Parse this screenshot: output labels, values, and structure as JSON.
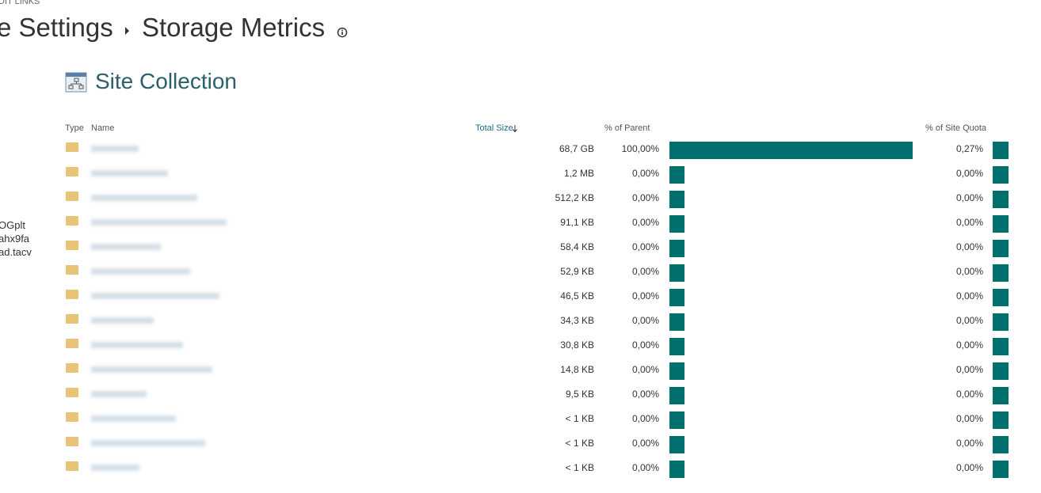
{
  "top_link": "DIT LINKS",
  "breadcrumb": {
    "parent": "e Settings",
    "current": "Storage Metrics"
  },
  "sidebar": [
    "OGplt",
    "ahx9fa",
    "ad.tacv"
  ],
  "section_title": "Site Collection",
  "table": {
    "headers": {
      "type": "Type",
      "name": "Name",
      "total_size": "Total Size",
      "percent_of_parent": "% of Parent",
      "percent_of_site_quota": "% of Site Quota"
    },
    "rows": [
      {
        "size": "68,7 GB",
        "parent": {
          "value": 100,
          "label": "100,00%"
        },
        "quota": {
          "value": 0.27,
          "label": "0,27%"
        }
      },
      {
        "size": "1,2 MB",
        "parent": {
          "value": 0,
          "label": "0,00%"
        },
        "quota": {
          "value": 0,
          "label": "0,00%"
        }
      },
      {
        "size": "512,2 KB",
        "parent": {
          "value": 0,
          "label": "0,00%"
        },
        "quota": {
          "value": 0,
          "label": "0,00%"
        }
      },
      {
        "size": "91,1 KB",
        "parent": {
          "value": 0,
          "label": "0,00%"
        },
        "quota": {
          "value": 0,
          "label": "0,00%"
        }
      },
      {
        "size": "58,4 KB",
        "parent": {
          "value": 0,
          "label": "0,00%"
        },
        "quota": {
          "value": 0,
          "label": "0,00%"
        }
      },
      {
        "size": "52,9 KB",
        "parent": {
          "value": 0,
          "label": "0,00%"
        },
        "quota": {
          "value": 0,
          "label": "0,00%"
        }
      },
      {
        "size": "46,5 KB",
        "parent": {
          "value": 0,
          "label": "0,00%"
        },
        "quota": {
          "value": 0,
          "label": "0,00%"
        }
      },
      {
        "size": "34,3 KB",
        "parent": {
          "value": 0,
          "label": "0,00%"
        },
        "quota": {
          "value": 0,
          "label": "0,00%"
        }
      },
      {
        "size": "30,8 KB",
        "parent": {
          "value": 0,
          "label": "0,00%"
        },
        "quota": {
          "value": 0,
          "label": "0,00%"
        }
      },
      {
        "size": "14,8 KB",
        "parent": {
          "value": 0,
          "label": "0,00%"
        },
        "quota": {
          "value": 0,
          "label": "0,00%"
        }
      },
      {
        "size": "9,5 KB",
        "parent": {
          "value": 0,
          "label": "0,00%"
        },
        "quota": {
          "value": 0,
          "label": "0,00%"
        }
      },
      {
        "size": "< 1 KB",
        "parent": {
          "value": 0,
          "label": "0,00%"
        },
        "quota": {
          "value": 0,
          "label": "0,00%"
        }
      },
      {
        "size": "< 1 KB",
        "parent": {
          "value": 0,
          "label": "0,00%"
        },
        "quota": {
          "value": 0,
          "label": "0,00%"
        }
      },
      {
        "size": "< 1 KB",
        "parent": {
          "value": 0,
          "label": "0,00%"
        },
        "quota": {
          "value": 0,
          "label": "0,00%"
        }
      }
    ]
  }
}
